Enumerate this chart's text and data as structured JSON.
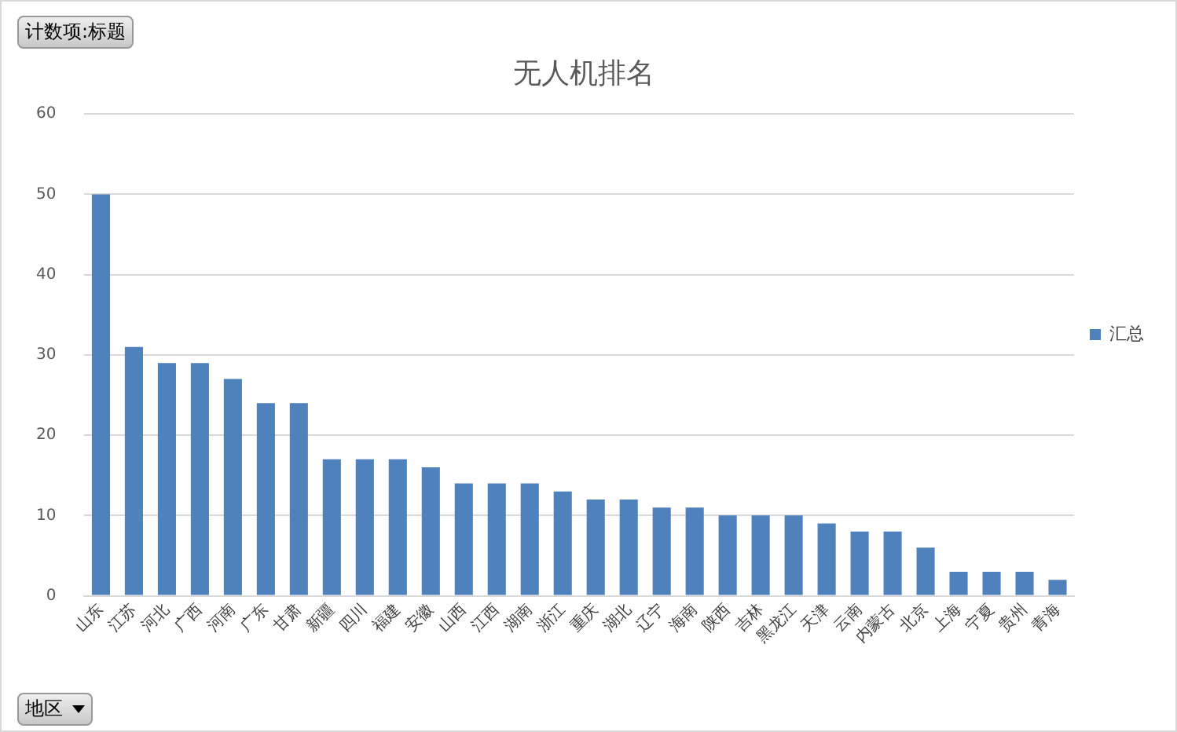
{
  "chart_data": {
    "type": "bar",
    "title": "无人机排名",
    "categories": [
      "山东",
      "江苏",
      "河北",
      "广西",
      "河南",
      "广东",
      "甘肃",
      "新疆",
      "四川",
      "福建",
      "安徽",
      "山西",
      "江西",
      "湖南",
      "浙江",
      "重庆",
      "湖北",
      "辽宁",
      "海南",
      "陕西",
      "吉林",
      "黑龙江",
      "天津",
      "云南",
      "内蒙古",
      "北京",
      "上海",
      "宁夏",
      "贵州",
      "青海"
    ],
    "series": [
      {
        "name": "汇总",
        "color": "#4f81bd",
        "values": [
          50,
          31,
          29,
          29,
          27,
          24,
          24,
          17,
          17,
          17,
          16,
          14,
          14,
          14,
          13,
          12,
          12,
          11,
          11,
          10,
          10,
          10,
          9,
          8,
          8,
          6,
          3,
          3,
          3,
          2
        ]
      }
    ],
    "ylim": [
      0,
      60
    ],
    "yticks": [
      0,
      10,
      20,
      30,
      40,
      50,
      60
    ],
    "grid": "y",
    "legend": "right",
    "annotations": [
      "计数项:标题",
      "地区"
    ]
  }
}
